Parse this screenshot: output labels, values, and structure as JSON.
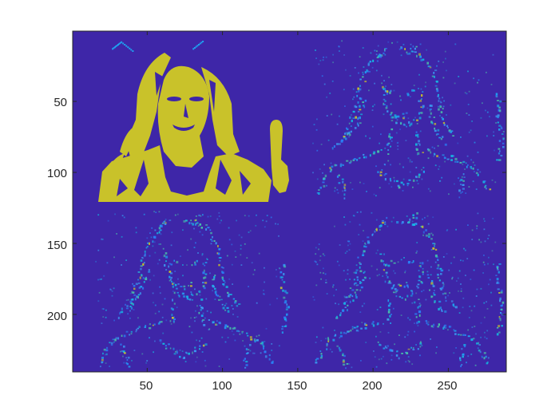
{
  "figure": {
    "type": "image-montage",
    "colormap": "parula",
    "background_color": "#3e26a8",
    "highlight_color": "#c9c22a",
    "edge_color": "#1fa0f0"
  },
  "axes": {
    "x_ticks": [
      "50",
      "100",
      "150",
      "200",
      "250"
    ],
    "y_ticks": [
      "50",
      "100",
      "150",
      "200"
    ],
    "x_tick_values": [
      50,
      100,
      150,
      200,
      250
    ],
    "y_tick_values": [
      50,
      100,
      150,
      200
    ],
    "x_range": [
      0.5,
      288.5
    ],
    "y_range": [
      0.5,
      240.5
    ]
  },
  "panels": [
    {
      "name": "binary-mask",
      "description_hidden": true
    },
    {
      "name": "edge-map-1",
      "description_hidden": true
    },
    {
      "name": "edge-map-2",
      "description_hidden": true
    },
    {
      "name": "edge-map-3",
      "description_hidden": true
    }
  ]
}
